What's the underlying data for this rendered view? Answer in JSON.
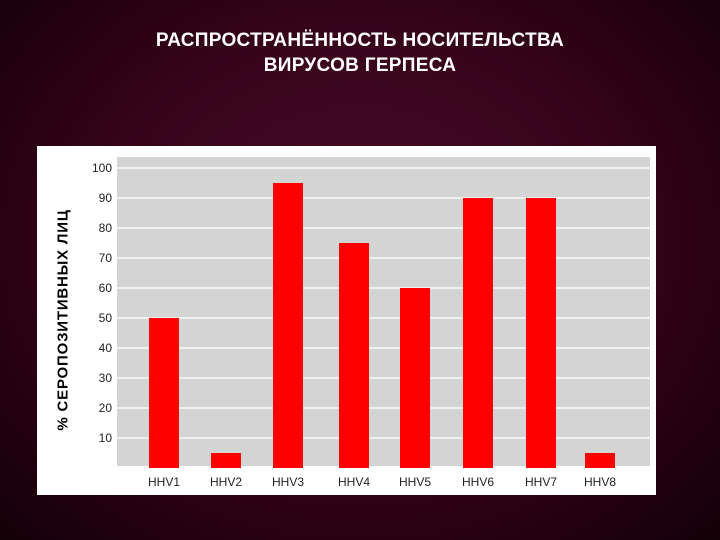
{
  "title_line1": "РАСПРОСТРАНЁННОСТЬ НОСИТЕЛЬСТВА",
  "title_line2": "ВИРУСОВ ГЕРПЕСА",
  "colors": {
    "bar": "#ff0000",
    "plot_bg": "#d4d4d4",
    "grid": "#f0f0f0",
    "background": "#3a051c"
  },
  "chart_data": {
    "type": "bar",
    "title": "РАСПРОСТРАНЁННОСТЬ НОСИТЕЛЬСТВА ВИРУСОВ ГЕРПЕСА",
    "xlabel": "",
    "ylabel": "% СЕРОПОЗИТИВНЫХ ЛИЦ",
    "categories": [
      "HHV1",
      "HHV2",
      "HHV3",
      "HHV4",
      "HHV5",
      "HHV6",
      "HHV7",
      "HHV8"
    ],
    "values": [
      50,
      5,
      95,
      75,
      60,
      90,
      90,
      5
    ],
    "ylim": [
      0,
      100
    ],
    "yticks": [
      10,
      20,
      30,
      40,
      50,
      60,
      70,
      80,
      90,
      100
    ],
    "grid": true,
    "legend": "none"
  }
}
